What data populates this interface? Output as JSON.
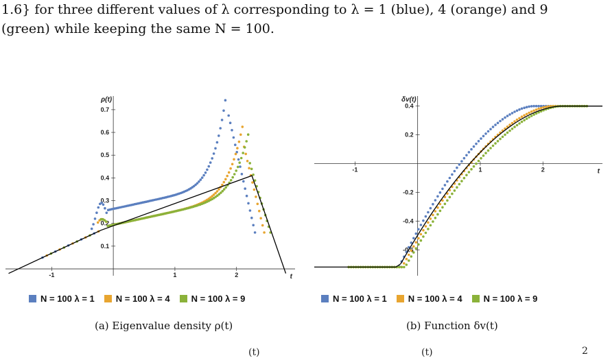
{
  "text": {
    "line1": "1.6} for three different values of λ corresponding to λ = 1 (blue), 4 (orange) and 9",
    "line2": "(green) while keeping the same N = 100.",
    "caption_a": "(a) Eigenvalue density ρ(t)",
    "caption_b": "(b) Function δv(t)",
    "cutoff_a": "(t)",
    "cutoff_b": "(t)",
    "cutoff_c": "2"
  },
  "colors": {
    "blue": "#5b7fbf",
    "orange": "#e8a530",
    "green": "#8bb23a",
    "theory": "#000000"
  },
  "chart_data": [
    {
      "type": "scatter",
      "title": "",
      "xlabel": "t",
      "ylabel": "ρ(t)",
      "xlim": [
        -1.75,
        2.95
      ],
      "ylim": [
        -0.03,
        0.76
      ],
      "xticks": [
        -1,
        1,
        2
      ],
      "yticks": [
        0.1,
        0.2,
        0.3,
        0.4,
        0.5,
        0.6,
        0.7
      ],
      "tick_labels_x": [
        "-1",
        "1",
        "2"
      ],
      "tick_labels_y": [
        "0.1",
        "0.2",
        "0.3",
        "0.4",
        "0.5",
        "0.6",
        "0.7"
      ],
      "legend": [
        "N = 100 λ = 1",
        "N = 100 λ = 4",
        "N = 100 λ = 9"
      ],
      "legend_position": "bottom",
      "theory_line": {
        "x": [
          -1.7,
          -0.2,
          2.25,
          2.8
        ],
        "y": [
          -0.02,
          0.17,
          0.41,
          -0.02
        ]
      },
      "series": [
        {
          "name": "N = 100 λ = 1",
          "lambda": 1,
          "x_min": -0.35,
          "x_max": 2.3,
          "x_peak": 1.85,
          "y_center": 0.27,
          "y_peak": 0.7
        },
        {
          "name": "N = 100 λ = 4",
          "lambda": 4,
          "x_min": -0.25,
          "x_max": 2.45,
          "x_peak": 2.12,
          "y_center": 0.2,
          "y_peak": 0.54
        },
        {
          "name": "N = 100 λ = 9",
          "lambda": 9,
          "x_min": -0.2,
          "x_max": 2.55,
          "x_peak": 2.2,
          "y_center": 0.2,
          "y_peak": 0.48
        }
      ]
    },
    {
      "type": "scatter",
      "title": "",
      "xlabel": "t",
      "ylabel": "δv(t)",
      "xlim": [
        -1.65,
        2.95
      ],
      "ylim": [
        -0.78,
        0.47
      ],
      "xticks": [
        -1,
        1,
        2
      ],
      "yticks": [
        0.4,
        0.2,
        -0.2,
        -0.4,
        -0.6
      ],
      "tick_labels_x": [
        "-1",
        "1",
        "2"
      ],
      "tick_labels_y": [
        "0.4",
        "0.2",
        "-0.2",
        "-0.4",
        "-0.6"
      ],
      "legend": [
        "N = 100 λ = 1",
        "N = 100 λ = 4",
        "N = 100 λ = 9"
      ],
      "legend_position": "bottom",
      "theory_line": {
        "x": [
          -1.65,
          -0.3,
          0.0,
          0.5,
          1.0,
          1.5,
          2.3,
          2.95
        ],
        "y": [
          -0.72,
          -0.72,
          -0.45,
          -0.2,
          0.02,
          0.2,
          0.4,
          0.4
        ]
      },
      "series": [
        {
          "name": "N = 100 λ = 1",
          "lambda": 1,
          "x_start": -0.3,
          "x_top": 1.85,
          "y_low": -0.72,
          "y_high": 0.4
        },
        {
          "name": "N = 100 λ = 4",
          "lambda": 4,
          "x_start": -0.25,
          "x_top": 2.15,
          "y_low": -0.72,
          "y_high": 0.4
        },
        {
          "name": "N = 100 λ = 9",
          "lambda": 9,
          "x_start": -0.2,
          "x_top": 2.3,
          "y_low": -0.72,
          "y_high": 0.4
        }
      ]
    }
  ]
}
